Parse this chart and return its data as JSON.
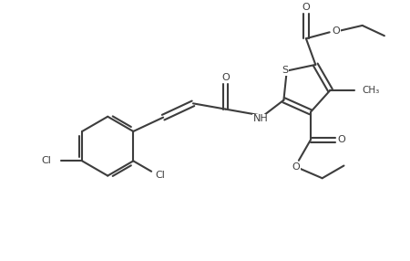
{
  "bg_color": "#ffffff",
  "lc": "#3d3d3d",
  "lw": 1.5,
  "fs": 8.0,
  "figsize": [
    4.5,
    2.86
  ],
  "dpi": 100,
  "xlim": [
    -0.5,
    10.5
  ],
  "ylim": [
    -0.5,
    7.0
  ]
}
